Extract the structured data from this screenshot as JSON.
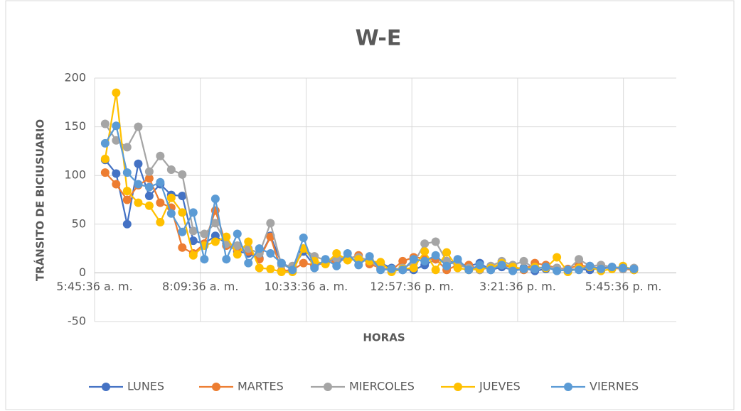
{
  "chart_data": {
    "type": "line",
    "title": "W-E",
    "x_label": "HORAS",
    "y_label": "TRÁNSITO DE BICIUSUARIO",
    "x": [
      0.25,
      0.2604,
      0.2708,
      0.2813,
      0.2917,
      0.3021,
      0.3125,
      0.3229,
      0.3333,
      0.3438,
      0.3542,
      0.3646,
      0.375,
      0.3854,
      0.3958,
      0.4063,
      0.4167,
      0.4271,
      0.4375,
      0.4479,
      0.4583,
      0.4688,
      0.4792,
      0.4896,
      0.5,
      0.5104,
      0.5208,
      0.5313,
      0.5417,
      0.5521,
      0.5625,
      0.5729,
      0.5833,
      0.5938,
      0.6042,
      0.6146,
      0.625,
      0.6354,
      0.6458,
      0.6563,
      0.6667,
      0.6771,
      0.6875,
      0.6979,
      0.7083,
      0.7188,
      0.7292,
      0.7396,
      0.75
    ],
    "series": [
      {
        "name": "LUNES",
        "color": "#4472c4",
        "values": [
          116,
          102,
          50,
          112,
          79,
          91,
          80,
          79,
          33,
          30,
          38,
          30,
          22,
          20,
          15,
          38,
          10,
          5,
          22,
          7,
          12,
          14,
          14,
          13,
          12,
          10,
          5,
          3,
          3,
          8,
          14,
          12,
          10,
          7,
          10,
          3,
          6,
          3,
          5,
          2,
          4,
          5,
          3,
          4,
          3,
          5,
          6,
          4,
          4
        ]
      },
      {
        "name": "MARTES",
        "color": "#ed7d31",
        "values": [
          103,
          91,
          75,
          90,
          97,
          72,
          67,
          26,
          20,
          30,
          64,
          28,
          24,
          22,
          14,
          37,
          2,
          3,
          10,
          8,
          10,
          12,
          14,
          18,
          9,
          5,
          3,
          12,
          16,
          15,
          14,
          3,
          8,
          8,
          3,
          6,
          8,
          6,
          3,
          10,
          8,
          5,
          4,
          8,
          6,
          5,
          5,
          4,
          3
        ]
      },
      {
        "name": "MIERCOLES",
        "color": "#a5a5a5",
        "values": [
          153,
          136,
          129,
          150,
          104,
          120,
          106,
          101,
          43,
          40,
          51,
          30,
          28,
          25,
          20,
          51,
          8,
          7,
          25,
          17,
          13,
          15,
          16,
          16,
          13,
          4,
          3,
          5,
          10,
          30,
          32,
          12,
          8,
          5,
          3,
          7,
          12,
          8,
          12,
          4,
          6,
          5,
          3,
          14,
          7,
          8,
          6,
          4,
          5
        ]
      },
      {
        "name": "JUEVES",
        "color": "#ffc000",
        "values": [
          117,
          185,
          84,
          72,
          69,
          52,
          77,
          62,
          18,
          28,
          32,
          37,
          19,
          32,
          5,
          4,
          1,
          1,
          25,
          12,
          9,
          20,
          13,
          14,
          12,
          11,
          1,
          4,
          5,
          22,
          3,
          21,
          5,
          3,
          4,
          5,
          10,
          6,
          4,
          6,
          5,
          16,
          1,
          5,
          6,
          2,
          4,
          7,
          3
        ]
      },
      {
        "name": "VIERNES",
        "color": "#5b9bd5",
        "values": [
          133,
          151,
          103,
          91,
          88,
          93,
          61,
          42,
          62,
          14,
          76,
          14,
          40,
          10,
          25,
          20,
          10,
          3,
          36,
          5,
          14,
          7,
          20,
          8,
          17,
          3,
          4,
          3,
          14,
          12,
          18,
          7,
          14,
          3,
          8,
          3,
          8,
          2,
          4,
          4,
          6,
          2,
          3,
          3,
          7,
          4,
          6,
          5,
          4
        ]
      }
    ],
    "xlim": [
      0.24,
      0.79
    ],
    "xticks": [
      {
        "value": 0.24,
        "label": "5:45:36 a. m."
      },
      {
        "value": 0.34,
        "label": "8:09:36 a. m."
      },
      {
        "value": 0.44,
        "label": "10:33:36 a. m."
      },
      {
        "value": 0.54,
        "label": "12:57:36 p. m."
      },
      {
        "value": 0.64,
        "label": "3:21:36 p. m."
      },
      {
        "value": 0.74,
        "label": "5:45:36 p. m."
      }
    ],
    "ylim": [
      -50,
      200
    ],
    "yticks": [
      -50,
      0,
      50,
      100,
      150,
      200
    ],
    "grid": true,
    "legend": "bottom"
  }
}
